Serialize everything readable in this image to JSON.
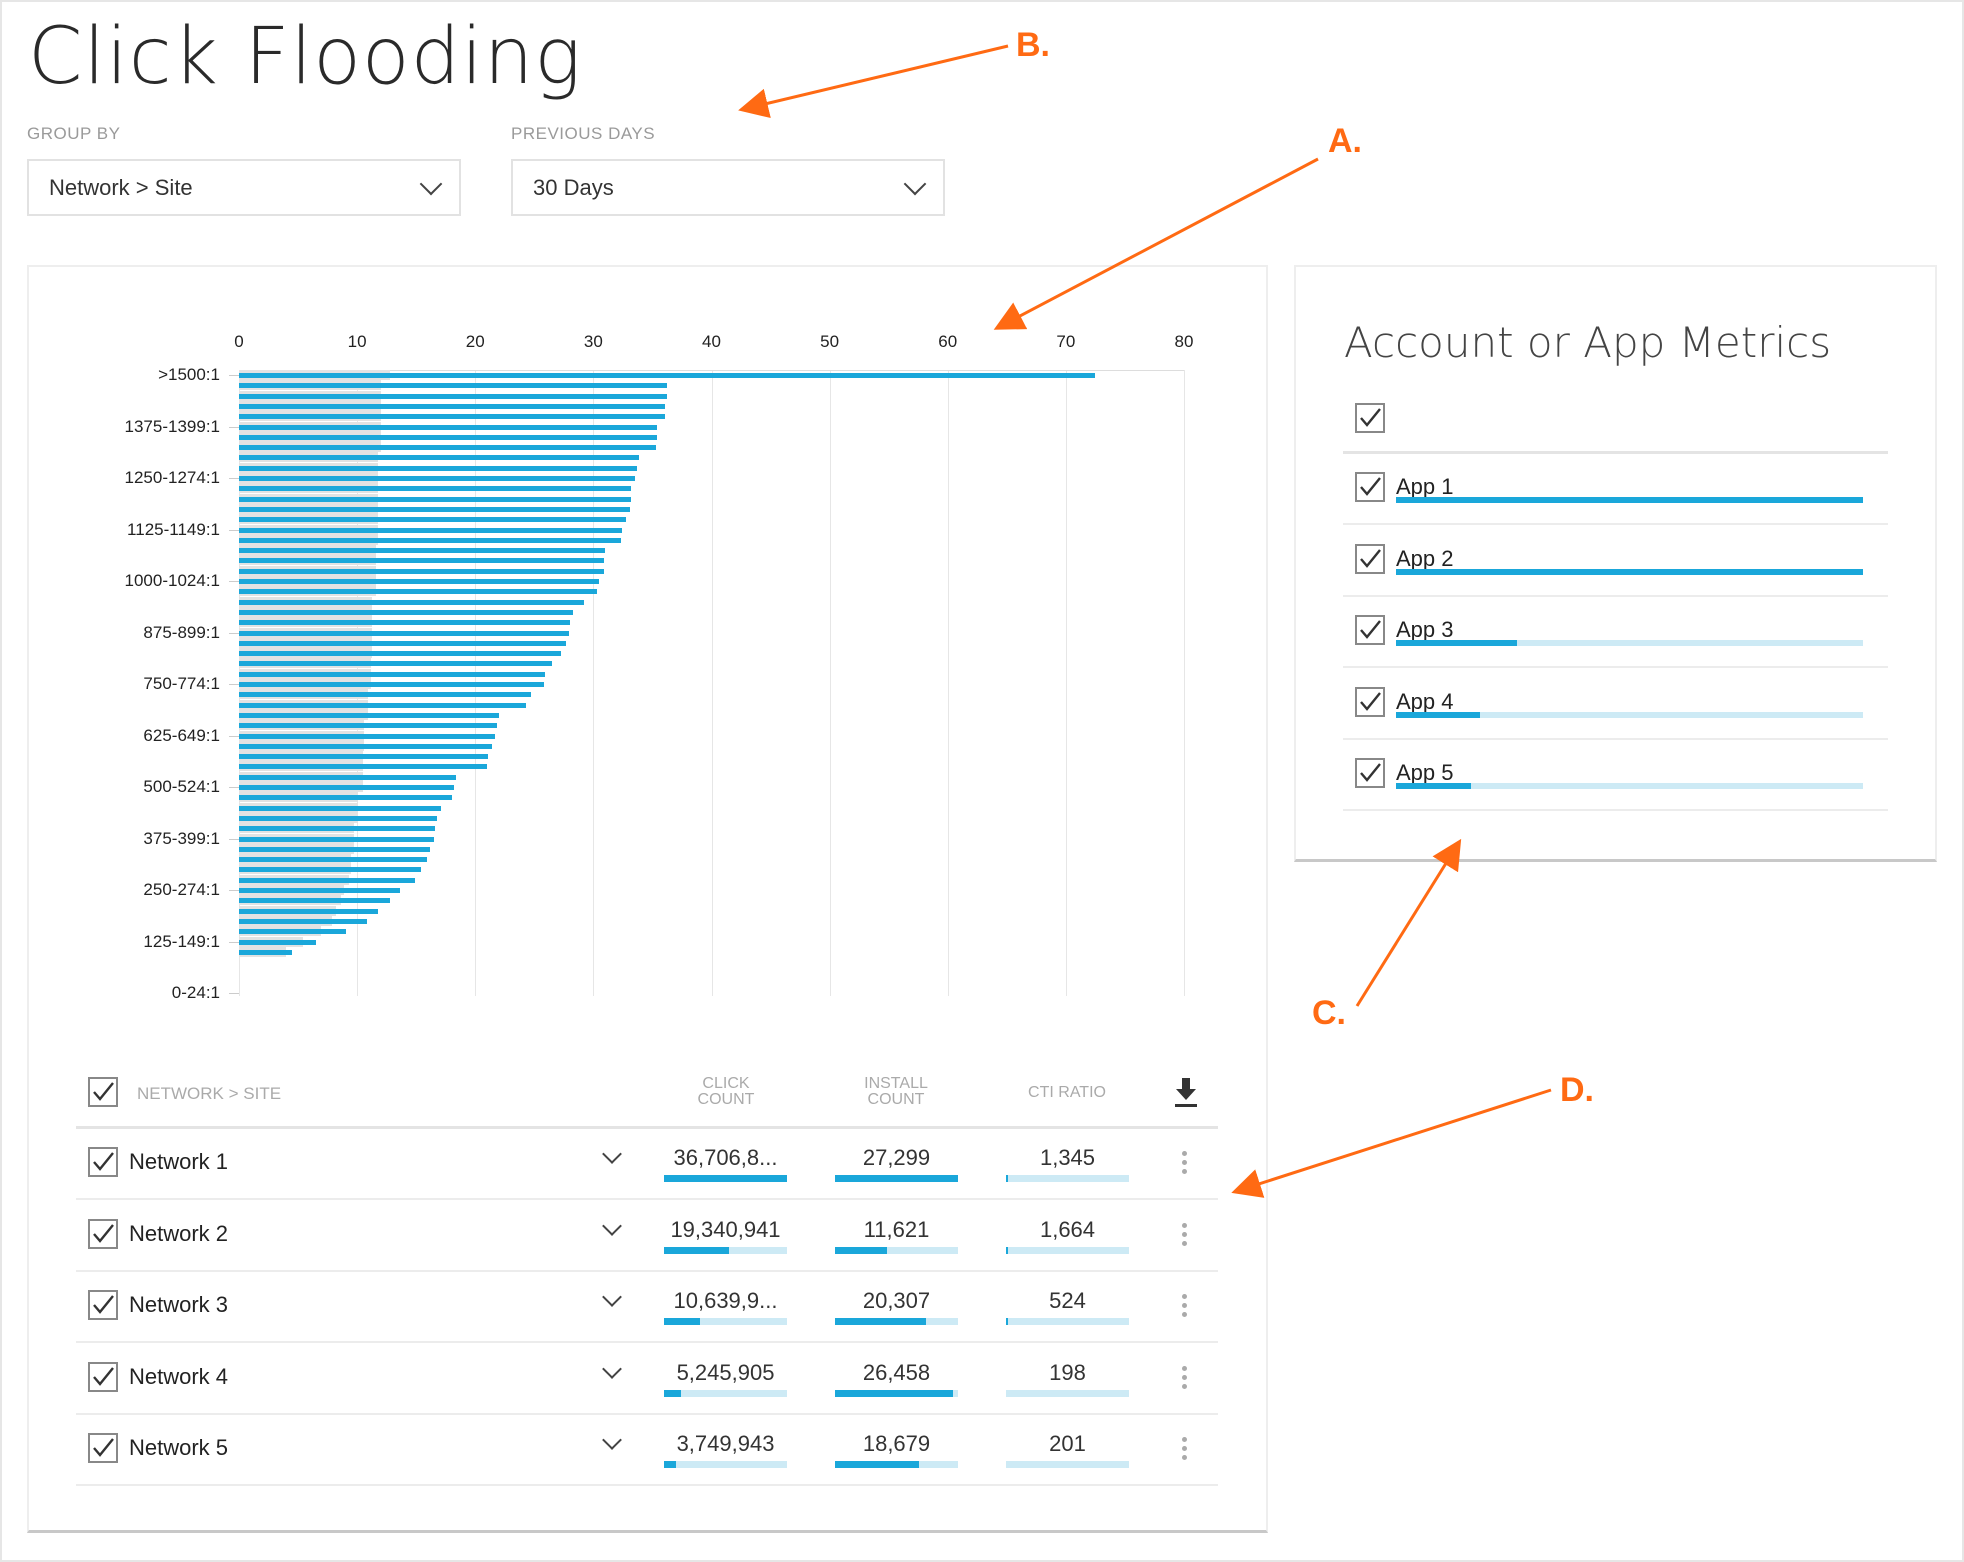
{
  "page_title": "Click Flooding",
  "filters": {
    "group_by": {
      "label": "GROUP BY",
      "value": "Network > Site"
    },
    "previous_days": {
      "label": "PREVIOUS DAYS",
      "value": "30 Days"
    }
  },
  "annotations": {
    "a": "A.",
    "b": "B.",
    "c": "C.",
    "d": "D."
  },
  "colors": {
    "accent": "#1aa7da",
    "accent_light": "#cdeaf5",
    "annotation": "#ff6a13",
    "secondary_bar": "#e0e0e0"
  },
  "chart_data": {
    "type": "bar",
    "orientation": "horizontal",
    "x_ticks": [
      "0",
      "10",
      "20",
      "30",
      "40",
      "50",
      "60",
      "70",
      "80"
    ],
    "xlim": [
      0,
      80
    ],
    "y_tick_labels": [
      ">1500:1",
      "1375-1399:1",
      "1250-1274:1",
      "1125-1149:1",
      "1000-1024:1",
      "875-899:1",
      "750-774:1",
      "625-649:1",
      "500-524:1",
      "375-399:1",
      "250-274:1",
      "125-149:1",
      "0-24:1"
    ],
    "bucket_count": 61,
    "series": [
      {
        "name": "primary",
        "values": [
          72.5,
          36.2,
          36.2,
          36.1,
          36.1,
          35.4,
          35.4,
          35.3,
          33.9,
          33.7,
          33.5,
          33.2,
          33.2,
          33.1,
          32.8,
          32.4,
          32.3,
          31.0,
          30.9,
          30.9,
          30.5,
          30.3,
          29.2,
          28.3,
          28.0,
          27.9,
          27.7,
          27.3,
          26.5,
          25.9,
          25.8,
          24.7,
          24.3,
          22.0,
          21.8,
          21.7,
          21.4,
          21.1,
          21.0,
          18.4,
          18.2,
          18.0,
          17.1,
          16.8,
          16.6,
          16.5,
          16.2,
          15.9,
          15.4,
          14.9,
          13.6,
          12.8,
          11.8,
          10.8,
          9.1,
          6.5,
          4.5,
          0,
          0,
          0,
          0
        ]
      },
      {
        "name": "background",
        "values": [
          12.8,
          12.0,
          12.0,
          12.0,
          12.0,
          12.0,
          12.0,
          12.0,
          11.8,
          11.8,
          11.8,
          11.8,
          11.8,
          11.8,
          11.8,
          11.8,
          11.8,
          11.6,
          11.6,
          11.6,
          11.6,
          11.6,
          11.3,
          11.3,
          11.3,
          11.3,
          11.3,
          11.3,
          11.2,
          11.2,
          11.2,
          10.9,
          10.9,
          10.9,
          10.6,
          10.6,
          10.6,
          10.5,
          10.5,
          10.5,
          10.5,
          10.1,
          10.1,
          10.1,
          9.7,
          9.7,
          9.7,
          9.5,
          9.5,
          9.3,
          8.9,
          8.6,
          8.2,
          7.9,
          6.9,
          5.4,
          4.0,
          0,
          0,
          0,
          0
        ]
      }
    ]
  },
  "table": {
    "headers": {
      "name": "NETWORK > SITE",
      "click_line1": "CLICK",
      "click_line2": "COUNT",
      "install_line1": "INSTALL",
      "install_line2": "COUNT",
      "cti": "CTI RATIO"
    },
    "rows": [
      {
        "name": "Network 1",
        "click": "36,706,8...",
        "click_pct": 1.0,
        "install": "27,299",
        "install_pct": 1.0,
        "cti": "1,345",
        "cti_pct": 0.02
      },
      {
        "name": "Network 2",
        "click": "19,340,941",
        "click_pct": 0.53,
        "install": "11,621",
        "install_pct": 0.42,
        "cti": "1,664",
        "cti_pct": 0.02
      },
      {
        "name": "Network 3",
        "click": "10,639,9...",
        "click_pct": 0.29,
        "install": "20,307",
        "install_pct": 0.74,
        "cti": "524",
        "cti_pct": 0.01
      },
      {
        "name": "Network 4",
        "click": "5,245,905",
        "click_pct": 0.14,
        "install": "26,458",
        "install_pct": 0.96,
        "cti": "198",
        "cti_pct": 0
      },
      {
        "name": "Network 5",
        "click": "3,749,943",
        "click_pct": 0.1,
        "install": "18,679",
        "install_pct": 0.68,
        "cti": "201",
        "cti_pct": 0
      }
    ]
  },
  "metrics": {
    "title": "Account or App Metrics",
    "apps": [
      {
        "name": "App 1",
        "pct": 1.0
      },
      {
        "name": "App 2",
        "pct": 1.0
      },
      {
        "name": "App 3",
        "pct": 0.26
      },
      {
        "name": "App 4",
        "pct": 0.18
      },
      {
        "name": "App 5",
        "pct": 0.16
      }
    ]
  }
}
